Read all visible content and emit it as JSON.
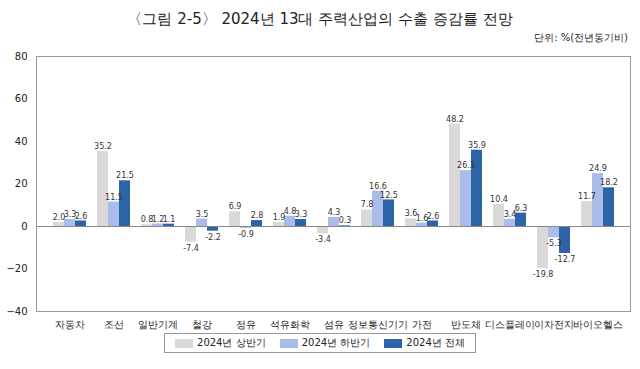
{
  "chart_data": {
    "type": "bar",
    "title": "〈그림 2-5〉 2024년 13대 주력산업의 수출 증감률 전망",
    "subtitle": "단위: %(전년동기비)",
    "categories": [
      "자동차",
      "조선",
      "일반기계",
      "철강",
      "정유",
      "석유화학",
      "섬유",
      "정보통신기기",
      "가전",
      "반도체",
      "디스플레이",
      "이차전지",
      "바이오헬스"
    ],
    "series": [
      {
        "name": "2024년 상반기",
        "color": "#d9d9d9",
        "values": [
          2.0,
          35.2,
          0.8,
          -7.4,
          6.9,
          1.9,
          -3.4,
          7.8,
          3.6,
          48.2,
          10.4,
          -19.8,
          11.7
        ],
        "value_labels": [
          "2.0",
          "35.2",
          "0.8",
          "-7.4",
          "6.9",
          "1.9",
          "-3.4",
          "7.8",
          "3.6",
          "48.2",
          "10.4",
          "-19.8",
          "11.7"
        ]
      },
      {
        "name": "2024년 하반기",
        "color": "#a9bde8",
        "values": [
          3.3,
          11.5,
          1.2,
          3.5,
          -0.9,
          4.8,
          4.3,
          16.6,
          1.6,
          26.3,
          3.4,
          -5.3,
          24.9
        ],
        "value_labels": [
          "3.3",
          "11.5",
          "1.2",
          "3.5",
          "-0.9",
          "4.8",
          "4.3",
          "16.6",
          "1.6",
          "26.3",
          "3.4",
          "-5.3",
          "24.9"
        ]
      },
      {
        "name": "2024년 전체",
        "color": "#2d64a8",
        "values": [
          2.6,
          21.5,
          1.1,
          -2.2,
          2.8,
          3.3,
          0.3,
          12.5,
          2.6,
          35.9,
          6.3,
          -12.7,
          18.2
        ],
        "value_labels": [
          "2.6",
          "21.5",
          "1.1",
          "-2.2",
          "2.8",
          "3.3",
          "0.3",
          "12.5",
          "2.6",
          "35.9",
          "6.3",
          "-12.7",
          "18.2"
        ]
      }
    ],
    "ylim": [
      -40,
      80
    ],
    "yticks": [
      -40,
      -20,
      0,
      20,
      40,
      60,
      80
    ],
    "grid": false,
    "legend": "bottom",
    "data_labels": true
  }
}
